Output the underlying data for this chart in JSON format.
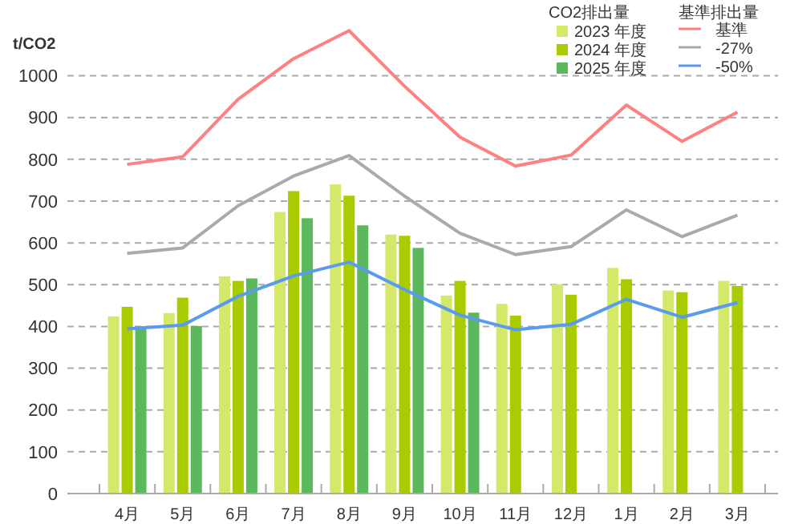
{
  "chart_data": {
    "type": "bar",
    "ylabel": "t/CO2",
    "legend_title": "CO2排出量",
    "annotations": [
      "基準排出量"
    ],
    "categories": [
      "4月",
      "5月",
      "6月",
      "7月",
      "8月",
      "9月",
      "10月",
      "11月",
      "12月",
      "1月",
      "2月",
      "3月"
    ],
    "series": [
      {
        "name": "2023 年度",
        "color": "#d4e86a",
        "values": [
          424,
          432,
          520,
          674,
          740,
          620,
          474,
          454,
          501,
          540,
          486,
          509
        ]
      },
      {
        "name": "2024 年度",
        "color": "#a8cc00",
        "values": [
          447,
          469,
          509,
          724,
          713,
          617,
          509,
          426,
          476,
          513,
          482,
          497
        ]
      },
      {
        "name": "2025 年度",
        "color": "#5cb85c",
        "values": [
          400,
          401,
          515,
          659,
          642,
          588,
          433,
          null,
          null,
          null,
          null,
          null
        ]
      },
      {
        "name": "基準",
        "type": "line",
        "color": "#ff8080",
        "values": [
          788,
          806,
          944,
          1041,
          1108,
          975,
          853,
          784,
          810,
          930,
          843,
          913
        ]
      },
      {
        "name": "-27%",
        "type": "line",
        "color": "#aaaaaa",
        "values": [
          575,
          588,
          689,
          760,
          809,
          712,
          623,
          572,
          591,
          679,
          615,
          666
        ]
      },
      {
        "name": "-50%",
        "type": "line",
        "color": "#5b9bef",
        "values": [
          394,
          403,
          472,
          521,
          554,
          488,
          427,
          392,
          405,
          465,
          422,
          457
        ]
      }
    ],
    "ylim": [
      0,
      1120
    ],
    "yticks": [
      0,
      100,
      200,
      300,
      400,
      500,
      600,
      700,
      800,
      900,
      1000
    ],
    "grid": "y",
    "legend": "top right",
    "marker": "none"
  }
}
